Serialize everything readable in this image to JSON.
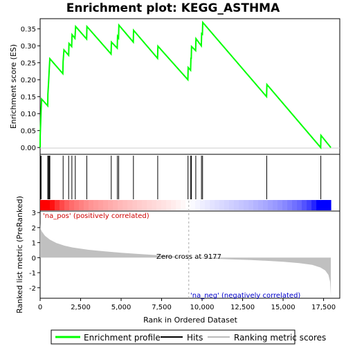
{
  "chart_data": {
    "title": "Enrichment plot: KEGG_ASTHMA",
    "es_panel": {
      "type": "line",
      "ylabel": "Enrichment score (ES)",
      "ylim": [
        -0.02,
        0.38
      ],
      "yticks": [
        "0.00",
        "0.05",
        "0.10",
        "0.15",
        "0.20",
        "0.25",
        "0.30",
        "0.35"
      ],
      "line_color": "#00ff00",
      "points": [
        [
          0,
          0.0
        ],
        [
          3,
          0.035
        ],
        [
          33,
          0.075
        ],
        [
          60,
          0.11
        ],
        [
          90,
          0.143
        ],
        [
          470,
          0.123
        ],
        [
          480,
          0.157
        ],
        [
          520,
          0.192
        ],
        [
          560,
          0.228
        ],
        [
          600,
          0.262
        ],
        [
          1400,
          0.218
        ],
        [
          1420,
          0.253
        ],
        [
          1470,
          0.288
        ],
        [
          1760,
          0.272
        ],
        [
          1780,
          0.307
        ],
        [
          1950,
          0.298
        ],
        [
          1970,
          0.333
        ],
        [
          2150,
          0.322
        ],
        [
          2190,
          0.357
        ],
        [
          2870,
          0.32
        ],
        [
          2890,
          0.357
        ],
        [
          4380,
          0.276
        ],
        [
          4400,
          0.311
        ],
        [
          4760,
          0.293
        ],
        [
          4780,
          0.328
        ],
        [
          4840,
          0.323
        ],
        [
          4860,
          0.361
        ],
        [
          5750,
          0.311
        ],
        [
          5770,
          0.346
        ],
        [
          7250,
          0.263
        ],
        [
          7270,
          0.299
        ],
        [
          9120,
          0.2
        ],
        [
          9140,
          0.236
        ],
        [
          9290,
          0.228
        ],
        [
          9310,
          0.263
        ],
        [
          9330,
          0.263
        ],
        [
          9350,
          0.298
        ],
        [
          9600,
          0.286
        ],
        [
          9620,
          0.321
        ],
        [
          9950,
          0.3
        ],
        [
          9970,
          0.336
        ],
        [
          10020,
          0.334
        ],
        [
          10040,
          0.369
        ],
        [
          13980,
          0.15
        ],
        [
          14000,
          0.186
        ],
        [
          17320,
          0.0
        ],
        [
          17340,
          0.036
        ],
        [
          17950,
          0.0
        ]
      ]
    },
    "hits": [
      0,
      30,
      60,
      470,
      520,
      560,
      600,
      1420,
      1760,
      1960,
      2170,
      2880,
      4390,
      4770,
      4850,
      5760,
      7260,
      9130,
      9300,
      9340,
      9610,
      9960,
      10030,
      13990,
      17330
    ],
    "metric_panel": {
      "type": "area",
      "ylabel": "Ranked list metric (PreRanked)",
      "xlabel": "Rank in Ordered Dataset",
      "ylim": [
        -2.7,
        3.1
      ],
      "yticks": [
        "-2",
        "-1",
        "0",
        "1",
        "2",
        "3"
      ],
      "xticks": [
        "0",
        "2,500",
        "5,000",
        "7,500",
        "10,000",
        "12,500",
        "15,000",
        "17,500"
      ],
      "xlim": [
        0,
        18500
      ],
      "zero_cross_label": "Zero cross at 9177",
      "zero_cross": 9177,
      "pos_label": "'na_pos' (positively correlated)",
      "neg_label": "'na_neg' (negatively correlated)",
      "curve": [
        [
          0,
          2.3
        ],
        [
          15,
          1.95
        ],
        [
          100,
          1.75
        ],
        [
          300,
          1.45
        ],
        [
          600,
          1.2
        ],
        [
          1000,
          0.98
        ],
        [
          1500,
          0.8
        ],
        [
          2000,
          0.68
        ],
        [
          3000,
          0.52
        ],
        [
          4000,
          0.42
        ],
        [
          5000,
          0.33
        ],
        [
          6000,
          0.25
        ],
        [
          7000,
          0.18
        ],
        [
          8000,
          0.11
        ],
        [
          9177,
          0.0
        ],
        [
          10000,
          -0.04
        ],
        [
          11000,
          -0.08
        ],
        [
          12000,
          -0.12
        ],
        [
          13000,
          -0.16
        ],
        [
          14000,
          -0.21
        ],
        [
          15000,
          -0.27
        ],
        [
          16000,
          -0.36
        ],
        [
          16800,
          -0.48
        ],
        [
          17300,
          -0.65
        ],
        [
          17600,
          -0.85
        ],
        [
          17800,
          -1.15
        ],
        [
          17900,
          -1.6
        ],
        [
          17950,
          -2.55
        ]
      ]
    },
    "legend": {
      "items": [
        "Enrichment profile",
        "Hits",
        "Ranking metric scores"
      ]
    }
  }
}
